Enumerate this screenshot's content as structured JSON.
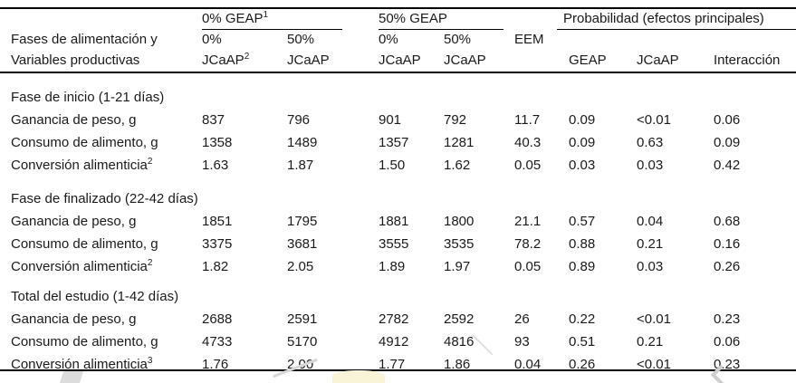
{
  "page": {
    "background": "#ffffff",
    "text_color": "#1a1a1a",
    "rule_color": "#000000"
  },
  "table": {
    "header": {
      "stub_line1": "Fases de alimentación y",
      "stub_line2": "Variables productivas",
      "groups": [
        {
          "label": "0% GEAP",
          "sup": "1"
        },
        {
          "label": "50% GEAP",
          "sup": ""
        },
        {
          "label": "Probabilidad (efectos principales)",
          "sup": ""
        }
      ],
      "subcols": {
        "g1a_pct": "0%",
        "g1a_name": "JCaAP",
        "g1a_sup": "2",
        "g1b_pct": "50%",
        "g1b_name": "JCaAP",
        "g2a_pct": "0%",
        "g2a_name": "JCaAP",
        "g2b_pct": "50%",
        "g2b_name": "JCaAP",
        "eem": "EEM",
        "p_geap": "GEAP",
        "p_jcaap": "JCaAP",
        "p_inter": "Interacción"
      }
    },
    "sections": [
      {
        "title": "Fase de inicio (1-21 días)",
        "rows": [
          {
            "label": "Ganancia de peso, g",
            "sup": "",
            "values": [
              "837",
              "796",
              "901",
              "792",
              "11.7",
              "0.09",
              "<0.01",
              "0.06"
            ]
          },
          {
            "label": "Consumo de alimento, g",
            "sup": "",
            "values": [
              "1358",
              "1489",
              "1357",
              "1281",
              "40.3",
              "0.09",
              "0.63",
              "0.09"
            ]
          },
          {
            "label": "Conversión alimenticia",
            "sup": "2",
            "values": [
              "1.63",
              "1.87",
              "1.50",
              "1.62",
              "0.05",
              "0.03",
              "0.03",
              "0.42"
            ]
          }
        ]
      },
      {
        "title": "Fase de finalizado (22-42 días)",
        "rows": [
          {
            "label": "Ganancia de peso, g",
            "sup": "",
            "values": [
              "1851",
              "1795",
              "1881",
              "1800",
              "21.1",
              "0.57",
              "0.04",
              "0.68"
            ]
          },
          {
            "label": "Consumo de alimento, g",
            "sup": "",
            "values": [
              "3375",
              "3681",
              "3555",
              "3535",
              "78.2",
              "0.88",
              "0.21",
              "0.16"
            ]
          },
          {
            "label": "Conversión alimenticia",
            "sup": "2",
            "values": [
              "1.82",
              "2.05",
              "1.89",
              "1.97",
              "0.05",
              "0.89",
              "0.03",
              "0.26"
            ]
          }
        ]
      },
      {
        "title": "Total del estudio (1-42 días)",
        "rows": [
          {
            "label": "Ganancia de peso, g",
            "sup": "",
            "values": [
              "2688",
              "2591",
              "2782",
              "2592",
              "26",
              "0.22",
              "<0.01",
              "0.23"
            ]
          },
          {
            "label": "Consumo de alimento, g",
            "sup": "",
            "values": [
              "4733",
              "5170",
              "4912",
              "4816",
              "93",
              "0.51",
              "0.21",
              "0.06"
            ]
          },
          {
            "label": "Conversión alimenticia",
            "sup": "3",
            "values": [
              "1.76",
              "2.00",
              "1.77",
              "1.86",
              "0.04",
              "0.26",
              "<0.01",
              "0.23"
            ]
          }
        ]
      }
    ]
  },
  "artifacts": {
    "highlight_color": "#f9f4d8",
    "smudge_color": "#dcdcdc"
  }
}
